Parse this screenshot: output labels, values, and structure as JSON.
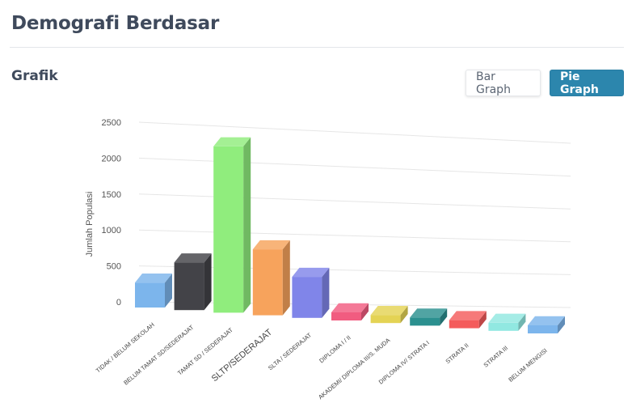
{
  "header": {
    "title": "Demografi Berdasar"
  },
  "section": {
    "title": "Grafik"
  },
  "buttons": {
    "bar_label": "Bar Graph",
    "pie_label": "Pie Graph"
  },
  "colors": {
    "accent": "#2c86ad"
  },
  "chart_data": {
    "type": "bar",
    "title": "",
    "xlabel": "",
    "ylabel": "Jumlah Populasi",
    "ylim": [
      0,
      2500
    ],
    "yticks": [
      0,
      500,
      1000,
      1500,
      2000,
      2500
    ],
    "grid": true,
    "legend": "none",
    "categories": [
      "TIDAK / BELUM SEKOLAH",
      "BELUM TAMAT SD/SEDERAJAT",
      "TAMAT SD / SEDERAJAT",
      "SLTP/SEDERAJAT",
      "SLTA / SEDERAJAT",
      "DIPLOMA I / II",
      "AKADEMI/ DIPLOMA III/S. MUDA",
      "DIPLOMA IV/ STRATA I",
      "STRATA II",
      "STRATA III",
      "BELUM MENGISI"
    ],
    "values": [
      340,
      650,
      2270,
      900,
      560,
      20,
      25,
      35,
      20,
      15,
      12
    ],
    "colors": [
      "#7cb5ec",
      "#434348",
      "#90ed7d",
      "#f7a35c",
      "#8085e9",
      "#f15c80",
      "#e4d354",
      "#2b908f",
      "#f45b5b",
      "#91e8e1",
      "#7cb5ec"
    ]
  }
}
